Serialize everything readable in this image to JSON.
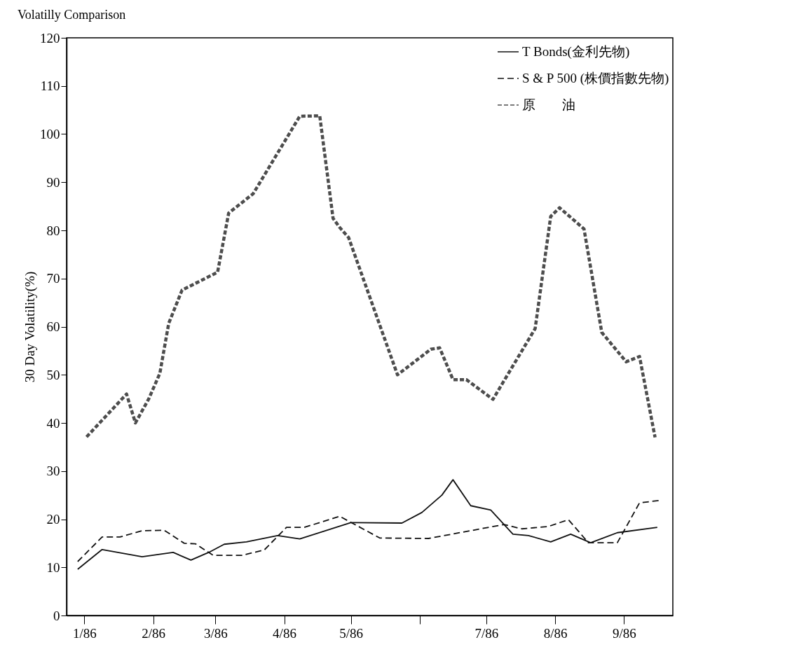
{
  "chart_data": {
    "type": "line",
    "title": "Volatilly Comparison",
    "ylabel": "30 Day Volatility(%)",
    "xlim": [
      "1985-12-24",
      "1986-09-23"
    ],
    "ylim": [
      0,
      120
    ],
    "xticks": [
      {
        "value": "1986-01-01",
        "label": "1/86"
      },
      {
        "value": "1986-02-01",
        "label": "2/86"
      },
      {
        "value": "1986-03-01",
        "label": "3/86"
      },
      {
        "value": "1986-04-01",
        "label": "4/86"
      },
      {
        "value": "1986-05-01",
        "label": "5/86"
      },
      {
        "value": "1986-06-01",
        "label": null
      },
      {
        "value": "1986-07-01",
        "label": "7/86"
      },
      {
        "value": "1986-08-01",
        "label": "8/86"
      },
      {
        "value": "1986-09-01",
        "label": "9/86"
      }
    ],
    "yticks": [
      0,
      10,
      20,
      30,
      40,
      50,
      60,
      70,
      80,
      90,
      100,
      110,
      120
    ],
    "legend": "top right",
    "series": [
      {
        "name": "T Bonds(金利先物)",
        "color": "#111111",
        "line_style": "solid",
        "x": [
          "1985-12-29",
          "1986-01-09",
          "1986-01-27",
          "1986-02-10",
          "1986-02-18",
          "1986-02-26",
          "1986-03-05",
          "1986-03-15",
          "1986-03-29",
          "1986-04-08",
          "1986-05-01",
          "1986-05-24",
          "1986-06-02",
          "1986-06-11",
          "1986-06-16",
          "1986-06-24",
          "1986-07-03",
          "1986-07-13",
          "1986-07-20",
          "1986-07-30",
          "1986-08-08",
          "1986-08-17",
          "1986-08-29",
          "1986-09-16"
        ],
        "values": [
          9.6,
          13.7,
          12.2,
          13.1,
          11.5,
          13.1,
          14.8,
          15.3,
          16.6,
          15.9,
          19.3,
          19.2,
          21.4,
          25.0,
          28.2,
          22.8,
          21.9,
          16.9,
          16.6,
          15.3,
          16.9,
          15.1,
          17.2,
          18.3
        ]
      },
      {
        "name": "S & P 500 (株價指數先物)",
        "color": "#111111",
        "line_style": "dashed",
        "x": [
          "1985-12-29",
          "1986-01-09",
          "1986-01-17",
          "1986-01-27",
          "1986-02-06",
          "1986-02-15",
          "1986-02-20",
          "1986-02-28",
          "1986-03-13",
          "1986-03-23",
          "1986-04-02",
          "1986-04-10",
          "1986-04-26",
          "1986-05-14",
          "1986-06-05",
          "1986-07-09",
          "1986-07-17",
          "1986-07-29",
          "1986-08-07",
          "1986-08-16",
          "1986-08-29",
          "1986-09-08",
          "1986-09-17"
        ],
        "values": [
          11.2,
          16.3,
          16.3,
          17.6,
          17.7,
          15.0,
          14.9,
          12.5,
          12.5,
          13.6,
          18.3,
          18.3,
          20.6,
          16.1,
          16.0,
          18.9,
          18.0,
          18.5,
          19.9,
          15.1,
          15.1,
          23.4,
          23.9
        ]
      },
      {
        "name": "原　　油",
        "color": "#4d4d4d",
        "line_style": "dotted",
        "x": [
          "1986-01-02",
          "1986-01-20",
          "1986-01-24",
          "1986-01-30",
          "1986-02-04",
          "1986-02-08",
          "1986-02-14",
          "1986-03-02",
          "1986-03-07",
          "1986-03-18",
          "1986-04-08",
          "1986-04-17",
          "1986-04-23",
          "1986-04-26",
          "1986-04-30",
          "1986-05-22",
          "1986-06-06",
          "1986-06-10",
          "1986-06-16",
          "1986-06-22",
          "1986-07-04",
          "1986-07-23",
          "1986-07-30",
          "1986-08-03",
          "1986-08-14",
          "1986-08-22",
          "1986-09-02",
          "1986-09-08",
          "1986-09-15"
        ],
        "values": [
          37.1,
          46,
          40,
          45,
          50.3,
          60.7,
          67.6,
          71.3,
          83.6,
          87.6,
          103.7,
          103.8,
          82.5,
          80.6,
          78.5,
          50.0,
          55.3,
          55.6,
          49.0,
          49.0,
          44.9,
          59.6,
          82.9,
          84.7,
          80.3,
          58.8,
          52.7,
          53.8,
          37
        ]
      }
    ]
  }
}
